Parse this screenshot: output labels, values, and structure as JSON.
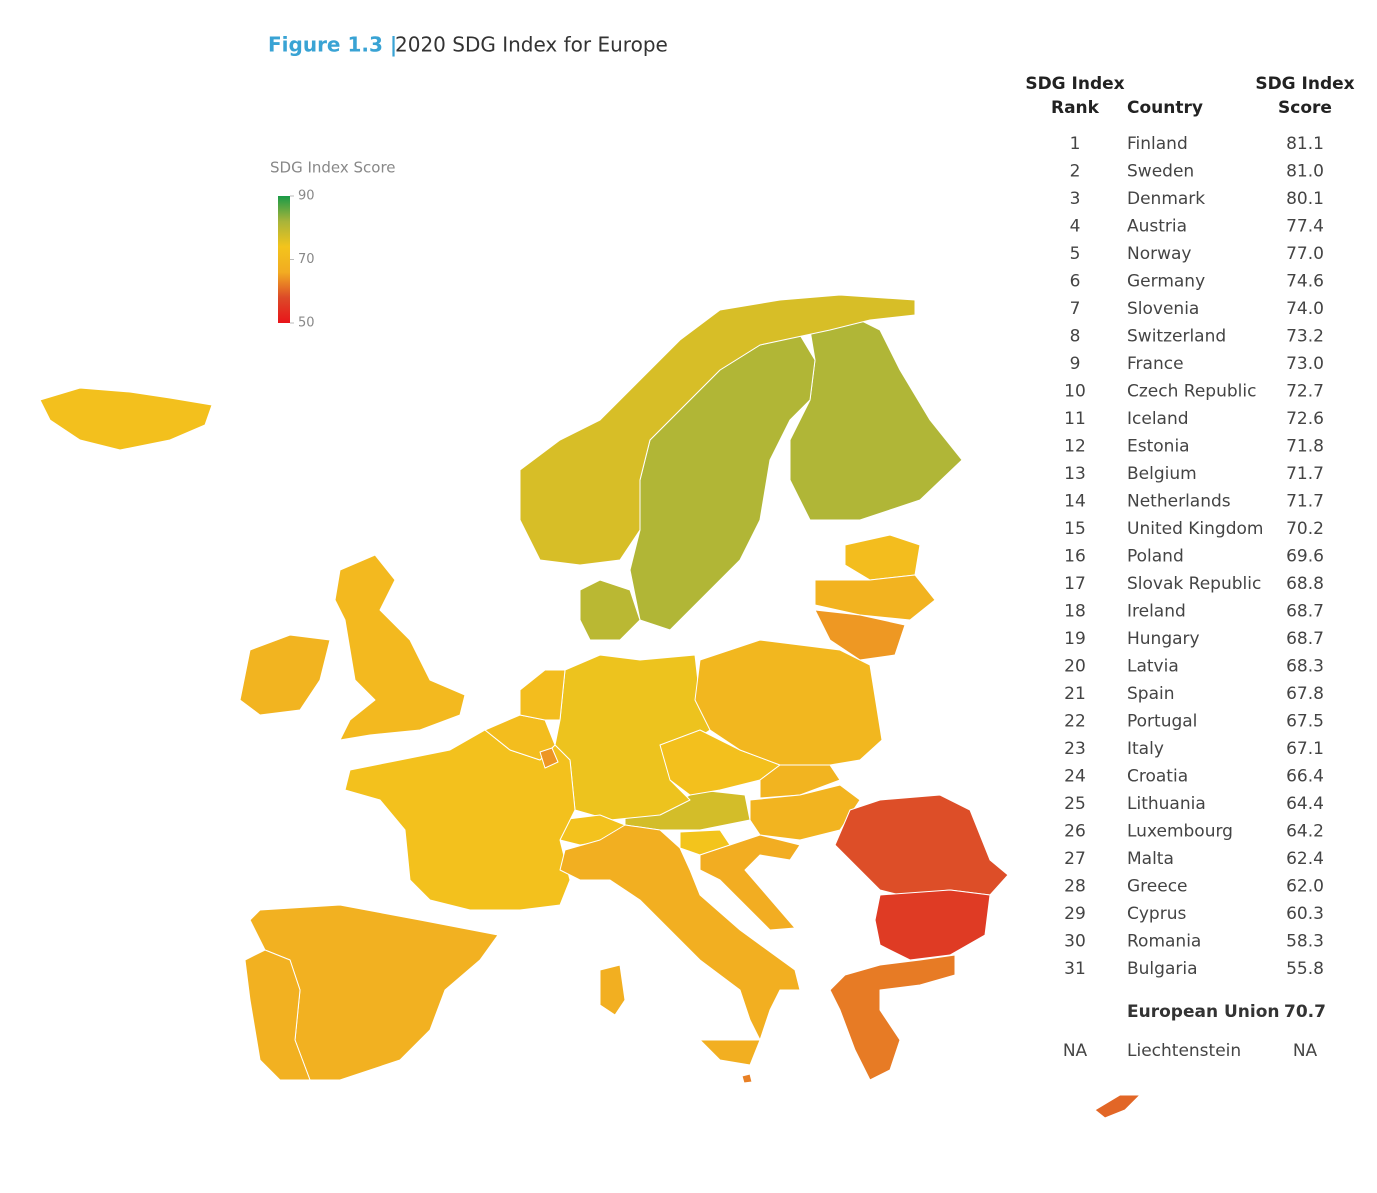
{
  "figure": {
    "label": "Figure 1.3 |",
    "title": "2020 SDG Index for Europe"
  },
  "legend": {
    "title": "SDG Index Score",
    "lim": [
      50,
      90
    ],
    "ticks": [
      90,
      70,
      50
    ],
    "colors": [
      "#e8141a",
      "#dc4a28",
      "#f2ac22",
      "#f3c41c",
      "#a8b43a",
      "#1a9a48"
    ]
  },
  "table": {
    "headers": [
      [
        "SDG Index",
        "Rank"
      ],
      [
        "Country"
      ],
      [
        "SDG Index",
        "Score"
      ]
    ],
    "rows": [
      [
        1,
        "Finland",
        "81.1"
      ],
      [
        2,
        "Sweden",
        "81.0"
      ],
      [
        3,
        "Denmark",
        "80.1"
      ],
      [
        4,
        "Austria",
        "77.4"
      ],
      [
        5,
        "Norway",
        "77.0"
      ],
      [
        6,
        "Germany",
        "74.6"
      ],
      [
        7,
        "Slovenia",
        "74.0"
      ],
      [
        8,
        "Switzerland",
        "73.2"
      ],
      [
        9,
        "France",
        "73.0"
      ],
      [
        10,
        "Czech Republic",
        "72.7"
      ],
      [
        11,
        "Iceland",
        "72.6"
      ],
      [
        12,
        "Estonia",
        "71.8"
      ],
      [
        13,
        "Belgium",
        "71.7"
      ],
      [
        14,
        "Netherlands",
        "71.7"
      ],
      [
        15,
        "United Kingdom",
        "70.2"
      ],
      [
        16,
        "Poland",
        "69.6"
      ],
      [
        17,
        "Slovak Republic",
        "68.8"
      ],
      [
        18,
        "Ireland",
        "68.7"
      ],
      [
        19,
        "Hungary",
        "68.7"
      ],
      [
        20,
        "Latvia",
        "68.3"
      ],
      [
        21,
        "Spain",
        "67.8"
      ],
      [
        22,
        "Portugal",
        "67.5"
      ],
      [
        23,
        "Italy",
        "67.1"
      ],
      [
        24,
        "Croatia",
        "66.4"
      ],
      [
        25,
        "Lithuania",
        "64.4"
      ],
      [
        26,
        "Luxembourg",
        "64.2"
      ],
      [
        27,
        "Malta",
        "62.4"
      ],
      [
        28,
        "Greece",
        "62.0"
      ],
      [
        29,
        "Cyprus",
        "60.3"
      ],
      [
        30,
        "Romania",
        "58.3"
      ],
      [
        31,
        "Bulgaria",
        "55.8"
      ]
    ],
    "eu": [
      "European Union",
      "70.7"
    ],
    "na": [
      "NA",
      "Liechtenstein",
      "NA"
    ]
  }
}
